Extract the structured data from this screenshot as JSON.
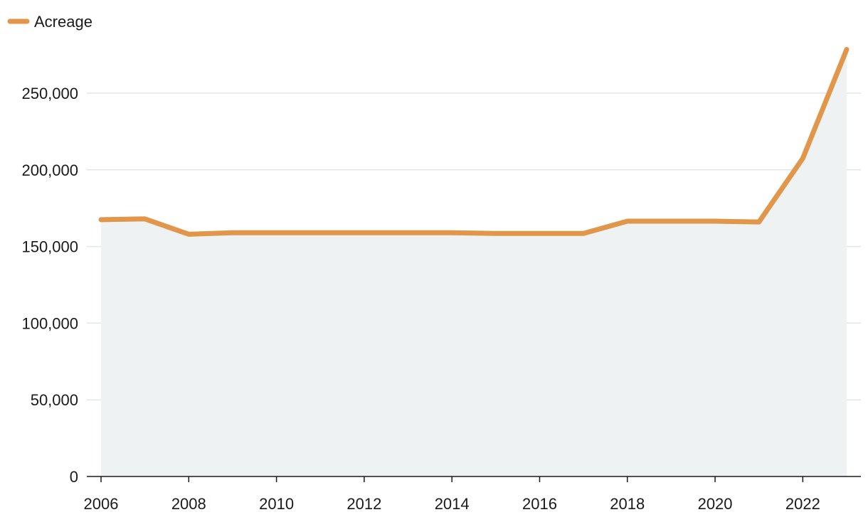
{
  "chart_data": {
    "type": "area",
    "title": "",
    "xlabel": "",
    "ylabel": "",
    "xlim": [
      2006,
      2023
    ],
    "ylim": [
      0,
      250000
    ],
    "x_ticks": [
      2006,
      2008,
      2010,
      2012,
      2014,
      2016,
      2018,
      2020,
      2022
    ],
    "x_tick_labels": [
      "2006",
      "2008",
      "2010",
      "2012",
      "2014",
      "2016",
      "2018",
      "2020",
      "2022"
    ],
    "y_ticks": [
      0,
      50000,
      100000,
      150000,
      200000,
      250000
    ],
    "y_tick_labels": [
      "0",
      "50,000",
      "100,000",
      "150,000",
      "200,000",
      "250,000"
    ],
    "grid": "horizontal",
    "legend": "top-left",
    "colors": {
      "line": "#e2964a",
      "area": "#eef2f3",
      "grid": "#e3e6e8",
      "axis": "#1a1a1a"
    },
    "series": [
      {
        "name": "Acreage",
        "x": [
          2006,
          2007,
          2008,
          2009,
          2010,
          2011,
          2012,
          2013,
          2014,
          2015,
          2016,
          2017,
          2018,
          2019,
          2020,
          2021,
          2022,
          2023
        ],
        "values": [
          167500,
          168000,
          158000,
          159000,
          159000,
          159000,
          159000,
          159000,
          159000,
          158500,
          158500,
          158500,
          166500,
          166500,
          166500,
          166000,
          207500,
          278500
        ]
      }
    ]
  }
}
